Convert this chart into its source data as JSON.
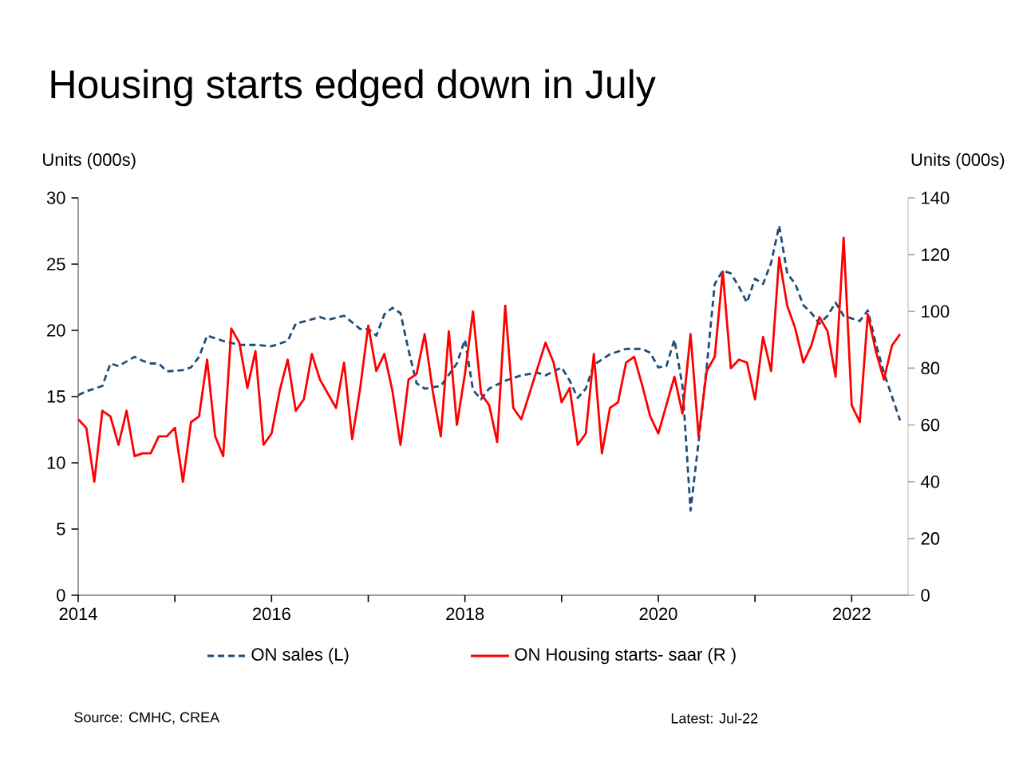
{
  "chart_data": {
    "type": "line",
    "title": "Housing starts edged down in July",
    "ylabel": "Units (000s)",
    "y2label": "Units (000s)",
    "x": [
      "2014-01",
      "2014-02",
      "2014-03",
      "2014-04",
      "2014-05",
      "2014-06",
      "2014-07",
      "2014-08",
      "2014-09",
      "2014-10",
      "2014-11",
      "2014-12",
      "2015-01",
      "2015-02",
      "2015-03",
      "2015-04",
      "2015-05",
      "2015-06",
      "2015-07",
      "2015-08",
      "2015-09",
      "2015-10",
      "2015-11",
      "2015-12",
      "2016-01",
      "2016-02",
      "2016-03",
      "2016-04",
      "2016-05",
      "2016-06",
      "2016-07",
      "2016-08",
      "2016-09",
      "2016-10",
      "2016-11",
      "2016-12",
      "2017-01",
      "2017-02",
      "2017-03",
      "2017-04",
      "2017-05",
      "2017-06",
      "2017-07",
      "2017-08",
      "2017-09",
      "2017-10",
      "2017-11",
      "2017-12",
      "2018-01",
      "2018-02",
      "2018-03",
      "2018-04",
      "2018-05",
      "2018-06",
      "2018-07",
      "2018-08",
      "2018-09",
      "2018-10",
      "2018-11",
      "2018-12",
      "2019-01",
      "2019-02",
      "2019-03",
      "2019-04",
      "2019-05",
      "2019-06",
      "2019-07",
      "2019-08",
      "2019-09",
      "2019-10",
      "2019-11",
      "2019-12",
      "2020-01",
      "2020-02",
      "2020-03",
      "2020-04",
      "2020-05",
      "2020-06",
      "2020-07",
      "2020-08",
      "2020-09",
      "2020-10",
      "2020-11",
      "2020-12",
      "2021-01",
      "2021-02",
      "2021-03",
      "2021-04",
      "2021-05",
      "2021-06",
      "2021-07",
      "2021-08",
      "2021-09",
      "2021-10",
      "2021-11",
      "2021-12",
      "2022-01",
      "2022-02",
      "2022-03",
      "2022-04",
      "2022-05",
      "2022-06",
      "2022-07"
    ],
    "series": [
      {
        "name": "ON sales (L)",
        "color": "#1f4e79",
        "line_style": "dashed",
        "x": [
          "2014-01",
          "2014-02",
          "2014-03",
          "2014-04",
          "2014-05",
          "2014-06",
          "2014-08",
          "2014-09",
          "2014-10",
          "2014-11",
          "2014-12",
          "2015-02",
          "2015-03",
          "2015-04",
          "2015-05",
          "2015-07",
          "2015-09",
          "2015-11",
          "2016-01",
          "2016-03",
          "2016-04",
          "2016-07",
          "2016-08",
          "2016-10",
          "2016-12",
          "2017-01",
          "2017-02",
          "2017-03",
          "2017-04",
          "2017-05",
          "2017-06",
          "2017-07",
          "2017-08",
          "2017-10",
          "2017-12",
          "2018-01",
          "2018-02",
          "2018-03",
          "2018-04",
          "2018-06",
          "2018-08",
          "2018-10",
          "2018-11",
          "2019-01",
          "2019-02",
          "2019-03",
          "2019-04",
          "2019-05",
          "2019-07",
          "2019-09",
          "2019-11",
          "2019-12",
          "2020-01",
          "2020-02",
          "2020-03",
          "2020-04",
          "2020-05",
          "2020-06",
          "2020-07",
          "2020-08",
          "2020-09",
          "2020-10",
          "2020-11",
          "2020-12",
          "2021-01",
          "2021-02",
          "2021-03",
          "2021-04",
          "2021-05",
          "2021-06",
          "2021-07",
          "2021-08",
          "2021-09",
          "2021-10",
          "2021-11",
          "2021-12",
          "2022-02",
          "2022-03",
          "2022-04",
          "2022-05",
          "2022-06",
          "2022-07"
        ],
        "values": [
          15.1,
          15.4,
          15.6,
          15.8,
          17.5,
          17.3,
          18.0,
          17.7,
          17.5,
          17.5,
          16.9,
          17.0,
          17.2,
          18.0,
          19.6,
          19.2,
          18.9,
          18.9,
          18.8,
          19.2,
          20.5,
          21.0,
          20.8,
          21.1,
          20.1,
          20.1,
          19.6,
          21.2,
          21.7,
          21.3,
          18.5,
          16.0,
          15.6,
          15.8,
          17.5,
          19.3,
          15.5,
          14.8,
          15.6,
          16.2,
          16.6,
          16.8,
          16.6,
          17.2,
          16.2,
          14.9,
          15.6,
          17.4,
          18.2,
          18.6,
          18.6,
          18.3,
          17.2,
          17.3,
          19.3,
          15.8,
          6.4,
          11.6,
          17.2,
          23.5,
          24.5,
          24.3,
          23.3,
          22.1,
          23.9,
          23.5,
          25.1,
          27.9,
          24.3,
          23.5,
          21.9,
          21.3,
          20.5,
          21.1,
          22.1,
          21.1,
          20.7,
          21.5,
          19.0,
          16.8,
          15.0,
          13.2
        ]
      },
      {
        "name": "ON Housing starts- saar (R )",
        "color": "#ff0000",
        "axis": "y2",
        "line_style": "solid",
        "values": [
          62,
          59,
          40,
          65,
          63,
          53,
          65,
          49,
          50,
          50,
          56,
          56,
          59,
          40,
          61,
          63,
          83,
          56,
          49,
          94,
          89,
          73,
          86,
          53,
          57,
          72,
          83,
          65,
          69,
          85,
          76,
          71,
          66,
          82,
          55,
          73,
          95,
          79,
          85,
          72,
          53,
          76,
          78,
          92,
          72,
          56,
          93,
          60,
          78,
          100,
          71,
          67,
          54,
          102,
          66,
          62,
          71,
          80,
          89,
          82,
          68,
          73,
          53,
          57,
          85,
          50,
          66,
          68,
          82,
          84,
          74,
          63,
          57,
          67,
          77,
          64,
          92,
          56,
          79,
          84,
          114,
          80,
          83,
          82,
          69,
          91,
          79,
          119,
          102,
          94,
          82,
          88,
          98,
          93,
          77,
          126,
          67,
          61,
          99,
          86,
          76,
          88,
          92
        ]
      }
    ],
    "xlim": [
      "2014-01",
      "2022-08"
    ],
    "xticks": [
      {
        "value": "2014",
        "label": "2014"
      },
      {
        "value": "2015",
        "label": null
      },
      {
        "value": "2016",
        "label": "2016"
      },
      {
        "value": "2017",
        "label": null
      },
      {
        "value": "2018",
        "label": "2018"
      },
      {
        "value": "2019",
        "label": null
      },
      {
        "value": "2020",
        "label": "2020"
      },
      {
        "value": "2021",
        "label": null
      },
      {
        "value": "2022",
        "label": "2022"
      }
    ],
    "ylim": [
      0,
      30
    ],
    "yticks": [
      0,
      5,
      10,
      15,
      20,
      25,
      30
    ],
    "y2lim": [
      0,
      140
    ],
    "y2ticks": [
      0,
      20,
      40,
      60,
      80,
      100,
      120,
      140
    ],
    "grid": false,
    "legend": "bottom",
    "marker": "none",
    "annotations": [
      "Source: CMHC, CREA",
      "Latest: Jul-22"
    ]
  }
}
